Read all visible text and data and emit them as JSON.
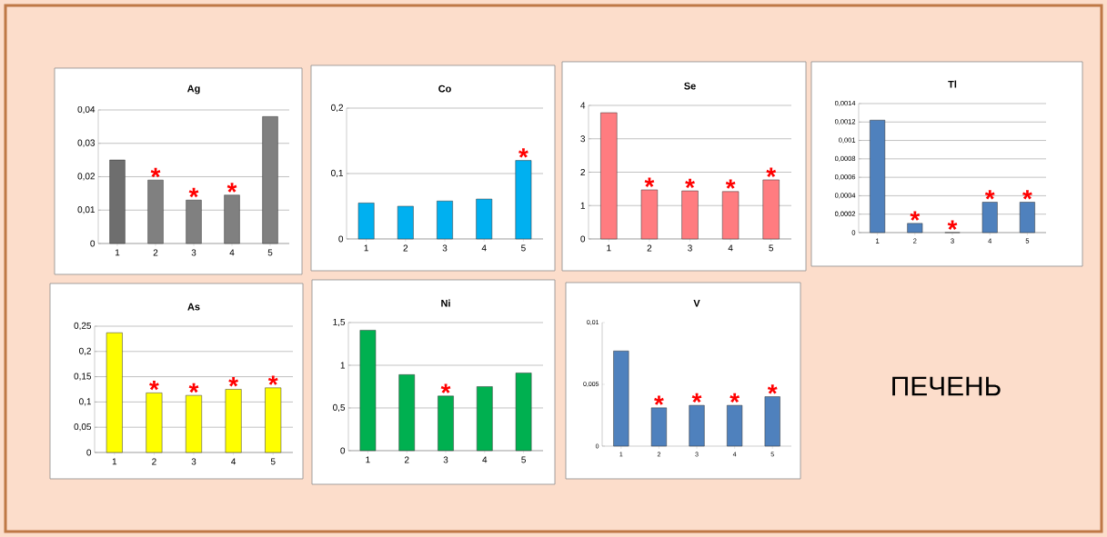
{
  "chart_data": [
    {
      "type": "bar",
      "title": "Ag",
      "categories": [
        "1",
        "2",
        "3",
        "4",
        "5"
      ],
      "values": [
        0.025,
        0.019,
        0.013,
        0.0145,
        0.038
      ],
      "colors": [
        "#6e6e6e",
        "#808080",
        "#808080",
        "#808080",
        "#808080"
      ],
      "ylim": [
        0,
        0.04
      ],
      "yticks": [
        0,
        {
          "value": 0.01,
          "label": "0,01"
        },
        {
          "value": 0.02,
          "label": "0,02"
        },
        {
          "value": 0.03,
          "label": "0,03"
        },
        {
          "value": 0.04,
          "label": "0,04"
        }
      ],
      "grid": "y",
      "annotations": [
        {
          "text": "*",
          "x": "2",
          "y": 0.019
        },
        {
          "text": "*",
          "x": "3",
          "y": 0.013
        },
        {
          "text": "*",
          "x": "4",
          "y": 0.0145
        }
      ]
    },
    {
      "type": "bar",
      "title": "Co",
      "categories": [
        "1",
        "2",
        "3",
        "4",
        "5"
      ],
      "values": [
        0.055,
        0.05,
        0.058,
        0.061,
        0.12
      ],
      "color": "#00b0f0",
      "ylim": [
        0,
        0.2
      ],
      "yticks": [
        0,
        {
          "value": 0.1,
          "label": "0,1"
        },
        {
          "value": 0.2,
          "label": "0,2"
        }
      ],
      "grid": "y",
      "annotations": [
        {
          "text": "*",
          "x": "5",
          "y": 0.12
        }
      ]
    },
    {
      "type": "bar",
      "title": "Se",
      "categories": [
        "1",
        "2",
        "3",
        "4",
        "5"
      ],
      "values": [
        3.78,
        1.47,
        1.44,
        1.42,
        1.77
      ],
      "color": "#ff7c80",
      "ylim": [
        0,
        4
      ],
      "yticks": [
        0,
        1,
        2,
        3,
        4
      ],
      "grid": "y",
      "annotations": [
        {
          "text": "*",
          "x": "2",
          "y": 1.47
        },
        {
          "text": "*",
          "x": "3",
          "y": 1.44
        },
        {
          "text": "*",
          "x": "4",
          "y": 1.42
        },
        {
          "text": "*",
          "x": "5",
          "y": 1.77
        }
      ]
    },
    {
      "type": "bar",
      "title": "Tl",
      "categories": [
        "1",
        "2",
        "3",
        "4",
        "5"
      ],
      "values": [
        0.00122,
        0.0001,
        0,
        0.00033,
        0.00033
      ],
      "color": "#4f81bd",
      "ylim": [
        0,
        0.0014
      ],
      "yticks": [
        0,
        {
          "value": 0.0002,
          "label": "0,0002"
        },
        {
          "value": 0.0004,
          "label": "0,0004"
        },
        {
          "value": 0.0006,
          "label": "0,0006"
        },
        {
          "value": 0.0008,
          "label": "0,0008"
        },
        {
          "value": 0.001,
          "label": "0,001"
        },
        {
          "value": 0.0012,
          "label": "0,0012"
        },
        {
          "value": 0.0014,
          "label": "0,0014"
        }
      ],
      "grid": "y",
      "annotations": [
        {
          "text": "*",
          "x": "2",
          "y": 0.0001
        },
        {
          "text": "*",
          "x": "3",
          "y": 0
        },
        {
          "text": "*",
          "x": "4",
          "y": 0.00033
        },
        {
          "text": "*",
          "x": "5",
          "y": 0.00033
        }
      ]
    },
    {
      "type": "bar",
      "title": "As",
      "categories": [
        "1",
        "2",
        "3",
        "4",
        "5"
      ],
      "values": [
        0.237,
        0.118,
        0.113,
        0.125,
        0.128
      ],
      "color": "#ffff00",
      "ylim": [
        0,
        0.25
      ],
      "yticks": [
        0,
        {
          "value": 0.05,
          "label": "0,05"
        },
        {
          "value": 0.1,
          "label": "0,1"
        },
        {
          "value": 0.15,
          "label": "0,15"
        },
        {
          "value": 0.2,
          "label": "0,2"
        },
        {
          "value": 0.25,
          "label": "0,25"
        }
      ],
      "grid": "y",
      "annotations": [
        {
          "text": "*",
          "x": "2",
          "y": 0.118
        },
        {
          "text": "*",
          "x": "3",
          "y": 0.113
        },
        {
          "text": "*",
          "x": "4",
          "y": 0.125
        },
        {
          "text": "*",
          "x": "5",
          "y": 0.128
        }
      ]
    },
    {
      "type": "bar",
      "title": "Ni",
      "categories": [
        "1",
        "2",
        "3",
        "4",
        "5"
      ],
      "values": [
        1.41,
        0.89,
        0.64,
        0.75,
        0.91
      ],
      "color": "#00b050",
      "ylim": [
        0,
        1.5
      ],
      "yticks": [
        0,
        {
          "value": 0.5,
          "label": "0,5"
        },
        1,
        {
          "value": 1.5,
          "label": "1,5"
        }
      ],
      "grid": "y",
      "annotations": [
        {
          "text": "*",
          "x": "3",
          "y": 0.64
        }
      ]
    },
    {
      "type": "bar",
      "title": "V",
      "categories": [
        "1",
        "2",
        "3",
        "4",
        "5"
      ],
      "values": [
        0.0077,
        0.0031,
        0.0033,
        0.0033,
        0.004
      ],
      "color": "#4f81bd",
      "ylim": [
        0,
        0.01
      ],
      "yticks": [
        0,
        {
          "value": 0.005,
          "label": "0,005"
        },
        {
          "value": 0.01,
          "label": "0,01"
        }
      ],
      "annotations": [
        {
          "text": "*",
          "x": "2",
          "y": 0.0031
        },
        {
          "text": "*",
          "x": "3",
          "y": 0.0033
        },
        {
          "text": "*",
          "x": "4",
          "y": 0.0033
        },
        {
          "text": "*",
          "x": "5",
          "y": 0.004
        }
      ]
    },
    {
      "type": "other",
      "title": "ПЕЧЕНЬ"
    }
  ]
}
